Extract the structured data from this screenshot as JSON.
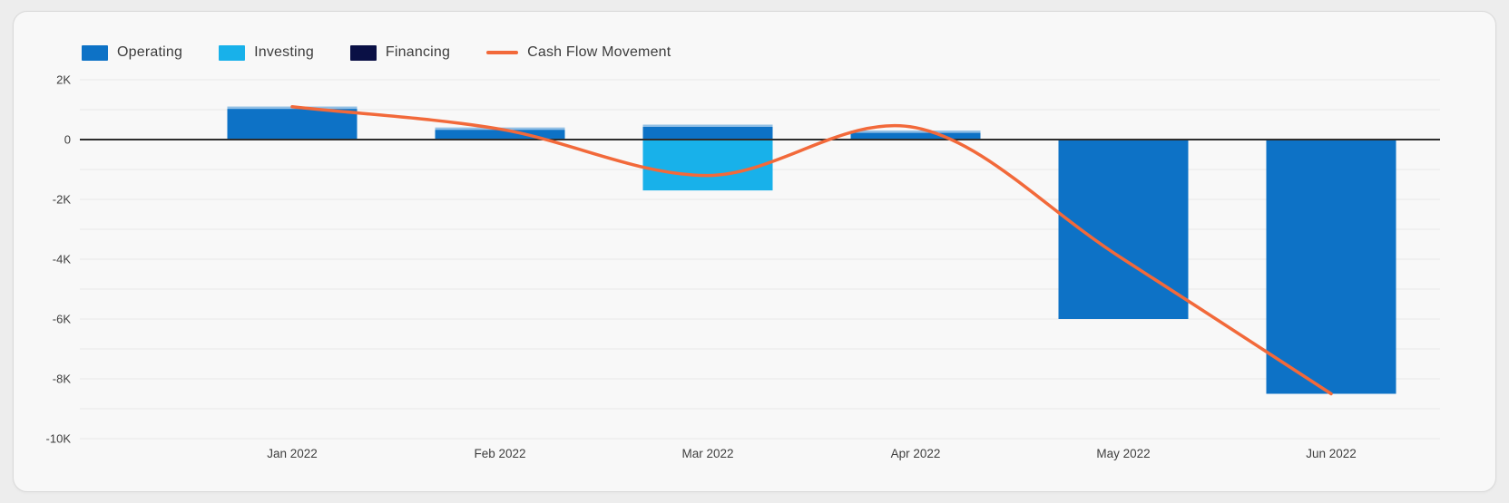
{
  "page": {
    "background_color": "#ededed",
    "card_background_color": "#f8f8f8",
    "card_border_color": "#d9d9d9"
  },
  "chart_data": {
    "type": "bar",
    "subtype": "combo-bar-line",
    "title": "",
    "categories": [
      "Jan 2022",
      "Feb 2022",
      "Mar 2022",
      "Apr 2022",
      "May 2022",
      "Jun 2022"
    ],
    "series": [
      {
        "name": "Operating",
        "type": "bar",
        "color": "#0d72c6",
        "values": [
          1100,
          400,
          500,
          300,
          -6000,
          -8500
        ]
      },
      {
        "name": "Investing",
        "type": "bar",
        "color": "#18b1ea",
        "values": [
          0,
          0,
          -1700,
          0,
          0,
          0
        ]
      },
      {
        "name": "Financing",
        "type": "bar",
        "color": "#0a1045",
        "values": [
          0,
          0,
          0,
          0,
          0,
          0
        ]
      },
      {
        "name": "Cash Flow Movement",
        "type": "line",
        "color": "#f2693a",
        "values": [
          1100,
          350,
          -1200,
          400,
          -4000,
          -8500
        ]
      }
    ],
    "legend": [
      {
        "label": "Operating",
        "color": "#0d72c6",
        "swatch": "rect"
      },
      {
        "label": "Investing",
        "color": "#18b1ea",
        "swatch": "rect"
      },
      {
        "label": "Financing",
        "color": "#0a1045",
        "swatch": "rect"
      },
      {
        "label": "Cash Flow Movement",
        "color": "#f2693a",
        "swatch": "line"
      }
    ],
    "legend_position": "top-left",
    "grid": true,
    "xlabel": "",
    "ylabel": "",
    "y_axis": {
      "min": -10000,
      "max": 2000,
      "grid_step": 1000,
      "ticks": [
        {
          "label": "2K",
          "value": 2000
        },
        {
          "label": "0",
          "value": 0
        },
        {
          "label": "-2K",
          "value": -2000
        },
        {
          "label": "-4K",
          "value": -4000
        },
        {
          "label": "-6K",
          "value": -6000
        },
        {
          "label": "-8K",
          "value": -8000
        },
        {
          "label": "-10K",
          "value": -10000
        }
      ]
    },
    "colors": {
      "gridline": "#e9e9e9",
      "zero_line": "#2d2d2d",
      "tick_text": "#3e3e3e"
    }
  }
}
